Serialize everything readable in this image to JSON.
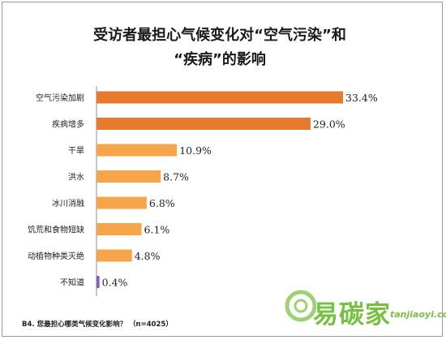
{
  "title_lines": [
    "受访者最担心气候变化对“空气污染”和",
    "“疾病”的影响"
  ],
  "footnote": "B4. 您最担心哪类气候变化影响？ （n=4025）",
  "watermark": {
    "cn": "易碳家",
    "en": "tanjiaoyi.com"
  },
  "colors": {
    "bar_top": "#e87a30",
    "bar_default": "#f6a54a",
    "bar_small": "#8a5bb8",
    "label_text": "#222222"
  },
  "chart_data": {
    "type": "bar",
    "orientation": "horizontal",
    "title": "受访者最担心气候变化对“空气污染”和“疾病”的影响",
    "categories": [
      "空气污染加剧",
      "疾病增多",
      "干旱",
      "洪水",
      "冰川消融",
      "饥荒和食物短缺",
      "动植物种类灭绝",
      "不知道"
    ],
    "values": [
      33.4,
      29.0,
      10.9,
      8.7,
      6.8,
      6.1,
      4.8,
      0.4
    ],
    "value_labels": [
      "33.4%",
      "29.0%",
      "10.9%",
      "8.7%",
      "6.8%",
      "6.1%",
      "4.8%",
      "0.4%"
    ],
    "unit": "%",
    "xlim": [
      0,
      35
    ],
    "grid": false,
    "legend": false
  }
}
